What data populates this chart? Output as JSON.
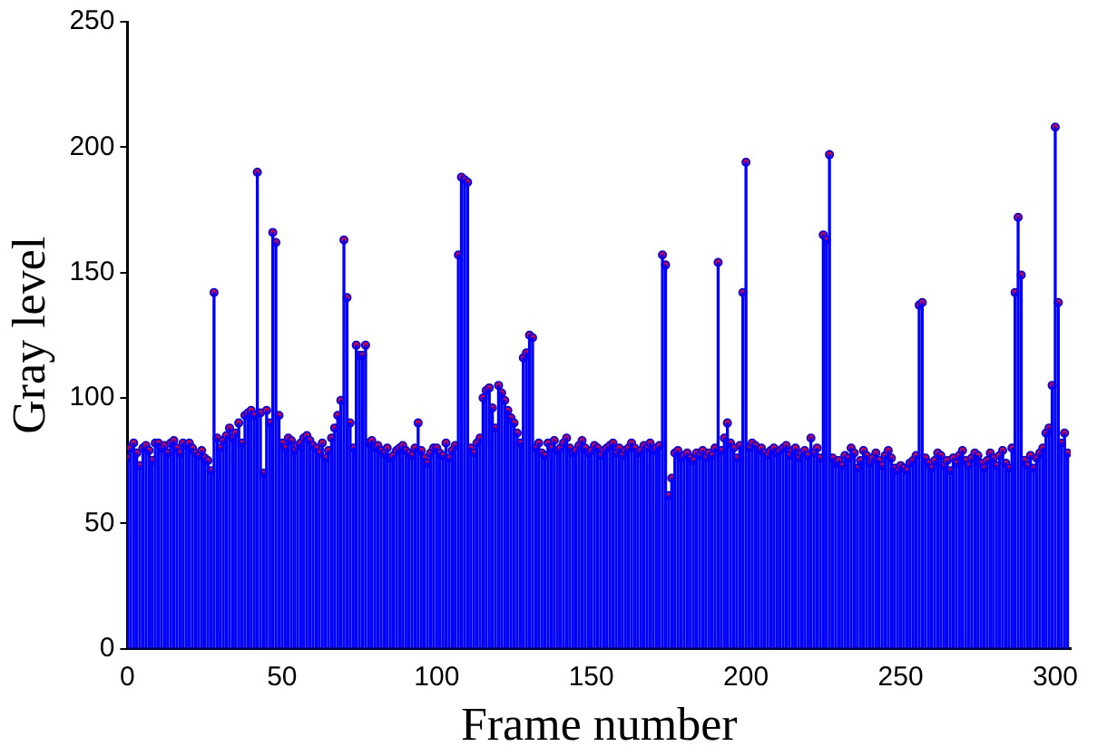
{
  "chart_data": {
    "type": "lollipop",
    "xlabel": "Frame number",
    "ylabel": "Gray level",
    "xlim": [
      0,
      305
    ],
    "xticks": [
      0,
      50,
      100,
      150,
      200,
      250,
      300
    ],
    "ylim": [
      0,
      250
    ],
    "yticks": [
      0,
      50,
      100,
      150,
      200,
      250
    ],
    "grid": false,
    "legend": false,
    "marker": "circle",
    "x": [
      0,
      1,
      2,
      3,
      4,
      5,
      6,
      7,
      8,
      9,
      10,
      11,
      12,
      13,
      14,
      15,
      16,
      17,
      18,
      19,
      20,
      21,
      22,
      23,
      24,
      25,
      26,
      27,
      28,
      29,
      30,
      31,
      32,
      33,
      34,
      35,
      36,
      37,
      38,
      39,
      40,
      41,
      42,
      43,
      44,
      45,
      46,
      47,
      48,
      49,
      50,
      51,
      52,
      53,
      54,
      55,
      56,
      57,
      58,
      59,
      60,
      61,
      62,
      63,
      64,
      65,
      66,
      67,
      68,
      69,
      70,
      71,
      72,
      73,
      74,
      75,
      76,
      77,
      78,
      79,
      80,
      81,
      82,
      83,
      84,
      85,
      86,
      87,
      88,
      89,
      90,
      91,
      92,
      93,
      94,
      95,
      96,
      97,
      98,
      99,
      100,
      101,
      102,
      103,
      104,
      105,
      106,
      107,
      108,
      109,
      110,
      111,
      112,
      113,
      114,
      115,
      116,
      117,
      118,
      119,
      120,
      121,
      122,
      123,
      124,
      125,
      126,
      127,
      128,
      129,
      130,
      131,
      132,
      133,
      134,
      135,
      136,
      137,
      138,
      139,
      140,
      141,
      142,
      143,
      144,
      145,
      146,
      147,
      148,
      149,
      150,
      151,
      152,
      153,
      154,
      155,
      156,
      157,
      158,
      159,
      160,
      161,
      162,
      163,
      164,
      165,
      166,
      167,
      168,
      169,
      170,
      171,
      172,
      173,
      174,
      175,
      176,
      177,
      178,
      179,
      180,
      181,
      182,
      183,
      184,
      185,
      186,
      187,
      188,
      189,
      190,
      191,
      192,
      193,
      194,
      195,
      196,
      197,
      198,
      199,
      200,
      201,
      202,
      203,
      204,
      205,
      206,
      207,
      208,
      209,
      210,
      211,
      212,
      213,
      214,
      215,
      216,
      217,
      218,
      219,
      220,
      221,
      222,
      223,
      224,
      225,
      226,
      227,
      228,
      229,
      230,
      231,
      232,
      233,
      234,
      235,
      236,
      237,
      238,
      239,
      240,
      241,
      242,
      243,
      244,
      245,
      246,
      247,
      248,
      249,
      250,
      251,
      252,
      253,
      254,
      255,
      256,
      257,
      258,
      259,
      260,
      261,
      262,
      263,
      264,
      265,
      266,
      267,
      268,
      269,
      270,
      271,
      272,
      273,
      274,
      275,
      276,
      277,
      278,
      279,
      280,
      281,
      282,
      283,
      284,
      285,
      286,
      287,
      288,
      289,
      290,
      291,
      292,
      293,
      294,
      295,
      296,
      297,
      298,
      299,
      300,
      301,
      302,
      303,
      304
    ],
    "series": [
      {
        "color": "#0000ff",
        "values": [
          76,
          80,
          82,
          78,
          73,
          80,
          81,
          79,
          75,
          82,
          82,
          80,
          81,
          78,
          82,
          83,
          80,
          78,
          82,
          81,
          82,
          80,
          78,
          77,
          79,
          76,
          75,
          71,
          142,
          84,
          80,
          83,
          85,
          88,
          84,
          86,
          90,
          82,
          93,
          94,
          95,
          93,
          190,
          94,
          70,
          95,
          90,
          166,
          162,
          93,
          82,
          80,
          84,
          83,
          79,
          81,
          82,
          84,
          85,
          83,
          81,
          80,
          78,
          82,
          76,
          79,
          84,
          88,
          93,
          99,
          163,
          140,
          90,
          80,
          121,
          117,
          117,
          121,
          82,
          83,
          80,
          81,
          79,
          78,
          80,
          76,
          77,
          79,
          80,
          81,
          79,
          78,
          77,
          80,
          90,
          79,
          76,
          74,
          78,
          80,
          80,
          78,
          77,
          82,
          76,
          79,
          81,
          157,
          188,
          187,
          186,
          80,
          78,
          82,
          84,
          100,
          103,
          104,
          96,
          88,
          105,
          102,
          99,
          95,
          92,
          90,
          86,
          82,
          116,
          118,
          125,
          124,
          80,
          82,
          78,
          77,
          82,
          80,
          83,
          79,
          80,
          82,
          84,
          80,
          78,
          79,
          81,
          83,
          80,
          78,
          79,
          81,
          80,
          77,
          79,
          80,
          81,
          82,
          78,
          80,
          77,
          79,
          80,
          82,
          80,
          78,
          79,
          81,
          80,
          82,
          79,
          80,
          81,
          157,
          153,
          61,
          68,
          78,
          79,
          76,
          77,
          78,
          76,
          75,
          78,
          77,
          79,
          76,
          78,
          77,
          80,
          154,
          79,
          84,
          90,
          82,
          80,
          76,
          81,
          142,
          194,
          80,
          82,
          81,
          79,
          80,
          78,
          77,
          79,
          80,
          78,
          79,
          80,
          81,
          77,
          79,
          80,
          76,
          78,
          79,
          77,
          84,
          78,
          80,
          76,
          165,
          163,
          197,
          76,
          74,
          75,
          73,
          77,
          76,
          80,
          78,
          72,
          75,
          79,
          77,
          74,
          76,
          78,
          75,
          73,
          77,
          79,
          76,
          72,
          71,
          73,
          72,
          71,
          74,
          75,
          77,
          137,
          138,
          76,
          74,
          72,
          75,
          78,
          77,
          73,
          75,
          71,
          76,
          74,
          77,
          79,
          75,
          73,
          76,
          78,
          77,
          74,
          72,
          75,
          78,
          76,
          73,
          77,
          79,
          74,
          72,
          80,
          142,
          172,
          149,
          75,
          73,
          77,
          72,
          76,
          78,
          80,
          86,
          88,
          105,
          208,
          138,
          82,
          86,
          78
        ]
      }
    ]
  }
}
